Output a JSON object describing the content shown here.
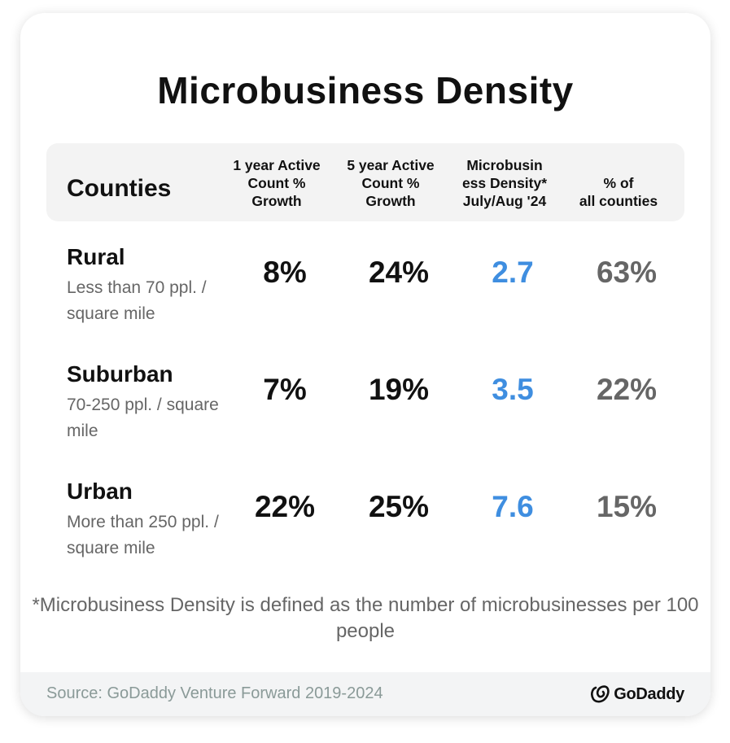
{
  "title": "Microbusiness Density",
  "table": {
    "headers": {
      "counties": "Counties",
      "col1": "1 year Active\nCount %\nGrowth",
      "col2": "5 year Active\nCount %\nGrowth",
      "col3": "Microbusin\ness Density*\nJuly/Aug '24",
      "col4": "% of\nall counties"
    },
    "rows": [
      {
        "name": "Rural",
        "desc": "Less than 70 ppl. / square mile",
        "one_year": "8%",
        "five_year": "24%",
        "density": "2.7",
        "share": "63%"
      },
      {
        "name": "Suburban",
        "desc": "70-250 ppl. / square mile",
        "one_year": "7%",
        "five_year": "19%",
        "density": "3.5",
        "share": "22%"
      },
      {
        "name": "Urban",
        "desc": "More than 250 ppl. / square mile",
        "one_year": "22%",
        "five_year": "25%",
        "density": "7.6",
        "share": "15%"
      }
    ]
  },
  "footnote": "*Microbusiness Density is defined as the number of microbusinesses per 100 people",
  "footer": {
    "source": "Source: GoDaddy Venture Forward 2019-2024",
    "logo_text": "GoDaddy"
  },
  "colors": {
    "density_value": "#3f8ee0",
    "share_value": "#666666",
    "header_bg": "#f3f3f3",
    "footer_bg": "#f3f4f5"
  },
  "icons": {
    "logo": "godaddy-logo-icon"
  }
}
